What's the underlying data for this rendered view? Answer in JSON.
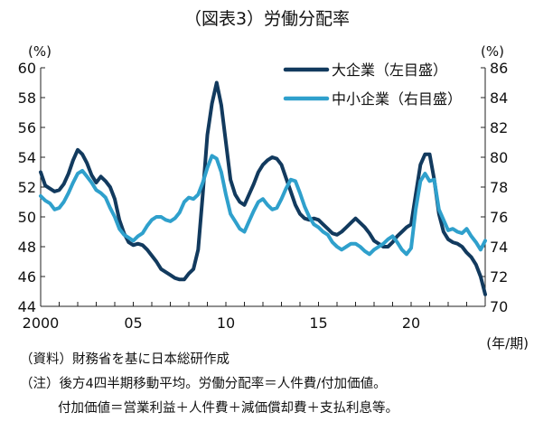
{
  "chart_data": {
    "type": "line",
    "title": "（図表3）労働分配率",
    "left_unit": "(%)",
    "right_unit": "(%)",
    "x_unit": "(年/期)",
    "x_range": [
      2000.0,
      2024.0
    ],
    "left_ylim": [
      44,
      60
    ],
    "right_ylim": [
      70,
      86
    ],
    "left_ticks": [
      "60",
      "58",
      "56",
      "54",
      "52",
      "50",
      "48",
      "46",
      "44"
    ],
    "right_ticks": [
      "86",
      "84",
      "82",
      "80",
      "78",
      "76",
      "74",
      "72",
      "70"
    ],
    "x_ticks": [
      {
        "x": 2000,
        "label": "2000"
      },
      {
        "x": 2005,
        "label": "05"
      },
      {
        "x": 2010,
        "label": "10"
      },
      {
        "x": 2015,
        "label": "15"
      },
      {
        "x": 2020,
        "label": "20"
      }
    ],
    "legend_position": "top-right",
    "grid": false,
    "series": [
      {
        "name": "大企業（左目盛）",
        "axis": "left",
        "color": "#123a5e",
        "points": [
          [
            2000.0,
            53.0
          ],
          [
            2000.25,
            52.1
          ],
          [
            2000.5,
            51.9
          ],
          [
            2000.75,
            51.7
          ],
          [
            2001.0,
            51.8
          ],
          [
            2001.25,
            52.2
          ],
          [
            2001.5,
            52.9
          ],
          [
            2001.75,
            53.8
          ],
          [
            2002.0,
            54.5
          ],
          [
            2002.25,
            54.2
          ],
          [
            2002.5,
            53.6
          ],
          [
            2002.75,
            52.8
          ],
          [
            2003.0,
            52.3
          ],
          [
            2003.25,
            52.7
          ],
          [
            2003.5,
            52.4
          ],
          [
            2003.75,
            52.0
          ],
          [
            2004.0,
            51.2
          ],
          [
            2004.25,
            49.8
          ],
          [
            2004.5,
            48.9
          ],
          [
            2004.75,
            48.3
          ],
          [
            2005.0,
            48.1
          ],
          [
            2005.25,
            48.2
          ],
          [
            2005.5,
            48.1
          ],
          [
            2005.75,
            47.8
          ],
          [
            2006.0,
            47.4
          ],
          [
            2006.25,
            47.0
          ],
          [
            2006.5,
            46.5
          ],
          [
            2006.75,
            46.3
          ],
          [
            2007.0,
            46.1
          ],
          [
            2007.25,
            45.9
          ],
          [
            2007.5,
            45.8
          ],
          [
            2007.75,
            45.8
          ],
          [
            2008.0,
            46.2
          ],
          [
            2008.25,
            46.5
          ],
          [
            2008.5,
            47.8
          ],
          [
            2008.75,
            51.5
          ],
          [
            2009.0,
            55.5
          ],
          [
            2009.25,
            57.6
          ],
          [
            2009.5,
            59.0
          ],
          [
            2009.75,
            57.5
          ],
          [
            2010.0,
            55.0
          ],
          [
            2010.25,
            52.5
          ],
          [
            2010.5,
            51.5
          ],
          [
            2010.75,
            51.0
          ],
          [
            2011.0,
            50.8
          ],
          [
            2011.25,
            51.5
          ],
          [
            2011.5,
            52.2
          ],
          [
            2011.75,
            53.0
          ],
          [
            2012.0,
            53.5
          ],
          [
            2012.25,
            53.8
          ],
          [
            2012.5,
            54.0
          ],
          [
            2012.75,
            53.9
          ],
          [
            2013.0,
            53.5
          ],
          [
            2013.25,
            52.6
          ],
          [
            2013.5,
            51.7
          ],
          [
            2013.75,
            50.8
          ],
          [
            2014.0,
            50.2
          ],
          [
            2014.25,
            49.9
          ],
          [
            2014.5,
            49.8
          ],
          [
            2014.75,
            49.9
          ],
          [
            2015.0,
            49.8
          ],
          [
            2015.25,
            49.5
          ],
          [
            2015.5,
            49.2
          ],
          [
            2015.75,
            48.9
          ],
          [
            2016.0,
            48.8
          ],
          [
            2016.25,
            49.0
          ],
          [
            2016.5,
            49.3
          ],
          [
            2016.75,
            49.6
          ],
          [
            2017.0,
            49.9
          ],
          [
            2017.25,
            49.6
          ],
          [
            2017.5,
            49.3
          ],
          [
            2017.75,
            48.9
          ],
          [
            2018.0,
            48.4
          ],
          [
            2018.25,
            48.2
          ],
          [
            2018.5,
            48.0
          ],
          [
            2018.75,
            48.0
          ],
          [
            2019.0,
            48.3
          ],
          [
            2019.25,
            48.7
          ],
          [
            2019.5,
            49.0
          ],
          [
            2019.75,
            49.3
          ],
          [
            2020.0,
            49.5
          ],
          [
            2020.25,
            51.5
          ],
          [
            2020.5,
            53.5
          ],
          [
            2020.75,
            54.2
          ],
          [
            2021.0,
            54.2
          ],
          [
            2021.25,
            52.5
          ],
          [
            2021.5,
            50.2
          ],
          [
            2021.75,
            49.0
          ],
          [
            2022.0,
            48.5
          ],
          [
            2022.25,
            48.3
          ],
          [
            2022.5,
            48.2
          ],
          [
            2022.75,
            48.0
          ],
          [
            2023.0,
            47.6
          ],
          [
            2023.25,
            47.3
          ],
          [
            2023.5,
            46.8
          ],
          [
            2023.75,
            46.0
          ],
          [
            2024.0,
            44.8
          ]
        ]
      },
      {
        "name": "中小企業（右目盛）",
        "axis": "right",
        "color": "#2fa0cc",
        "points": [
          [
            2000.0,
            77.4
          ],
          [
            2000.25,
            77.1
          ],
          [
            2000.5,
            76.9
          ],
          [
            2000.75,
            76.5
          ],
          [
            2001.0,
            76.6
          ],
          [
            2001.25,
            77.0
          ],
          [
            2001.5,
            77.6
          ],
          [
            2001.75,
            78.3
          ],
          [
            2002.0,
            78.9
          ],
          [
            2002.25,
            79.1
          ],
          [
            2002.5,
            78.7
          ],
          [
            2002.75,
            78.3
          ],
          [
            2003.0,
            77.8
          ],
          [
            2003.25,
            77.6
          ],
          [
            2003.5,
            77.3
          ],
          [
            2003.75,
            76.6
          ],
          [
            2004.0,
            76.0
          ],
          [
            2004.25,
            75.2
          ],
          [
            2004.5,
            74.8
          ],
          [
            2004.75,
            74.6
          ],
          [
            2005.0,
            74.4
          ],
          [
            2005.25,
            74.7
          ],
          [
            2005.5,
            74.9
          ],
          [
            2005.75,
            75.4
          ],
          [
            2006.0,
            75.8
          ],
          [
            2006.25,
            76.0
          ],
          [
            2006.5,
            76.0
          ],
          [
            2006.75,
            75.8
          ],
          [
            2007.0,
            75.7
          ],
          [
            2007.25,
            75.9
          ],
          [
            2007.5,
            76.3
          ],
          [
            2007.75,
            77.0
          ],
          [
            2008.0,
            77.3
          ],
          [
            2008.25,
            77.2
          ],
          [
            2008.5,
            77.5
          ],
          [
            2008.75,
            78.3
          ],
          [
            2009.0,
            79.3
          ],
          [
            2009.25,
            80.1
          ],
          [
            2009.5,
            79.9
          ],
          [
            2009.75,
            79.0
          ],
          [
            2010.0,
            77.5
          ],
          [
            2010.25,
            76.2
          ],
          [
            2010.5,
            75.7
          ],
          [
            2010.75,
            75.2
          ],
          [
            2011.0,
            75.0
          ],
          [
            2011.25,
            75.7
          ],
          [
            2011.5,
            76.4
          ],
          [
            2011.75,
            77.0
          ],
          [
            2012.0,
            77.2
          ],
          [
            2012.25,
            76.8
          ],
          [
            2012.5,
            76.5
          ],
          [
            2012.75,
            76.6
          ],
          [
            2013.0,
            77.2
          ],
          [
            2013.25,
            77.9
          ],
          [
            2013.5,
            78.5
          ],
          [
            2013.75,
            78.4
          ],
          [
            2014.0,
            77.6
          ],
          [
            2014.25,
            76.7
          ],
          [
            2014.5,
            76.0
          ],
          [
            2014.75,
            75.5
          ],
          [
            2015.0,
            75.3
          ],
          [
            2015.25,
            75.0
          ],
          [
            2015.5,
            74.8
          ],
          [
            2015.75,
            74.3
          ],
          [
            2016.0,
            74.0
          ],
          [
            2016.25,
            73.8
          ],
          [
            2016.5,
            74.0
          ],
          [
            2016.75,
            74.2
          ],
          [
            2017.0,
            74.2
          ],
          [
            2017.25,
            74.0
          ],
          [
            2017.5,
            73.7
          ],
          [
            2017.75,
            73.5
          ],
          [
            2018.0,
            73.8
          ],
          [
            2018.25,
            74.0
          ],
          [
            2018.5,
            74.2
          ],
          [
            2018.75,
            74.5
          ],
          [
            2019.0,
            74.7
          ],
          [
            2019.25,
            74.3
          ],
          [
            2019.5,
            73.8
          ],
          [
            2019.75,
            73.5
          ],
          [
            2020.0,
            73.9
          ],
          [
            2020.25,
            76.5
          ],
          [
            2020.5,
            78.4
          ],
          [
            2020.75,
            78.9
          ],
          [
            2021.0,
            78.4
          ],
          [
            2021.25,
            78.5
          ],
          [
            2021.5,
            76.5
          ],
          [
            2021.75,
            75.8
          ],
          [
            2022.0,
            75.1
          ],
          [
            2022.25,
            75.2
          ],
          [
            2022.5,
            75.0
          ],
          [
            2022.75,
            74.9
          ],
          [
            2023.0,
            75.2
          ],
          [
            2023.25,
            74.7
          ],
          [
            2023.5,
            74.3
          ],
          [
            2023.75,
            73.8
          ],
          [
            2024.0,
            74.4
          ]
        ]
      }
    ]
  },
  "notes": {
    "source": "（資料）財務省を基に日本総研作成",
    "note1": "（注）後方4四半期移動平均。労働分配率＝人件費/付加価値。",
    "note2": "付加価値＝営業利益＋人件費＋減価償却費＋支払利息等。"
  }
}
